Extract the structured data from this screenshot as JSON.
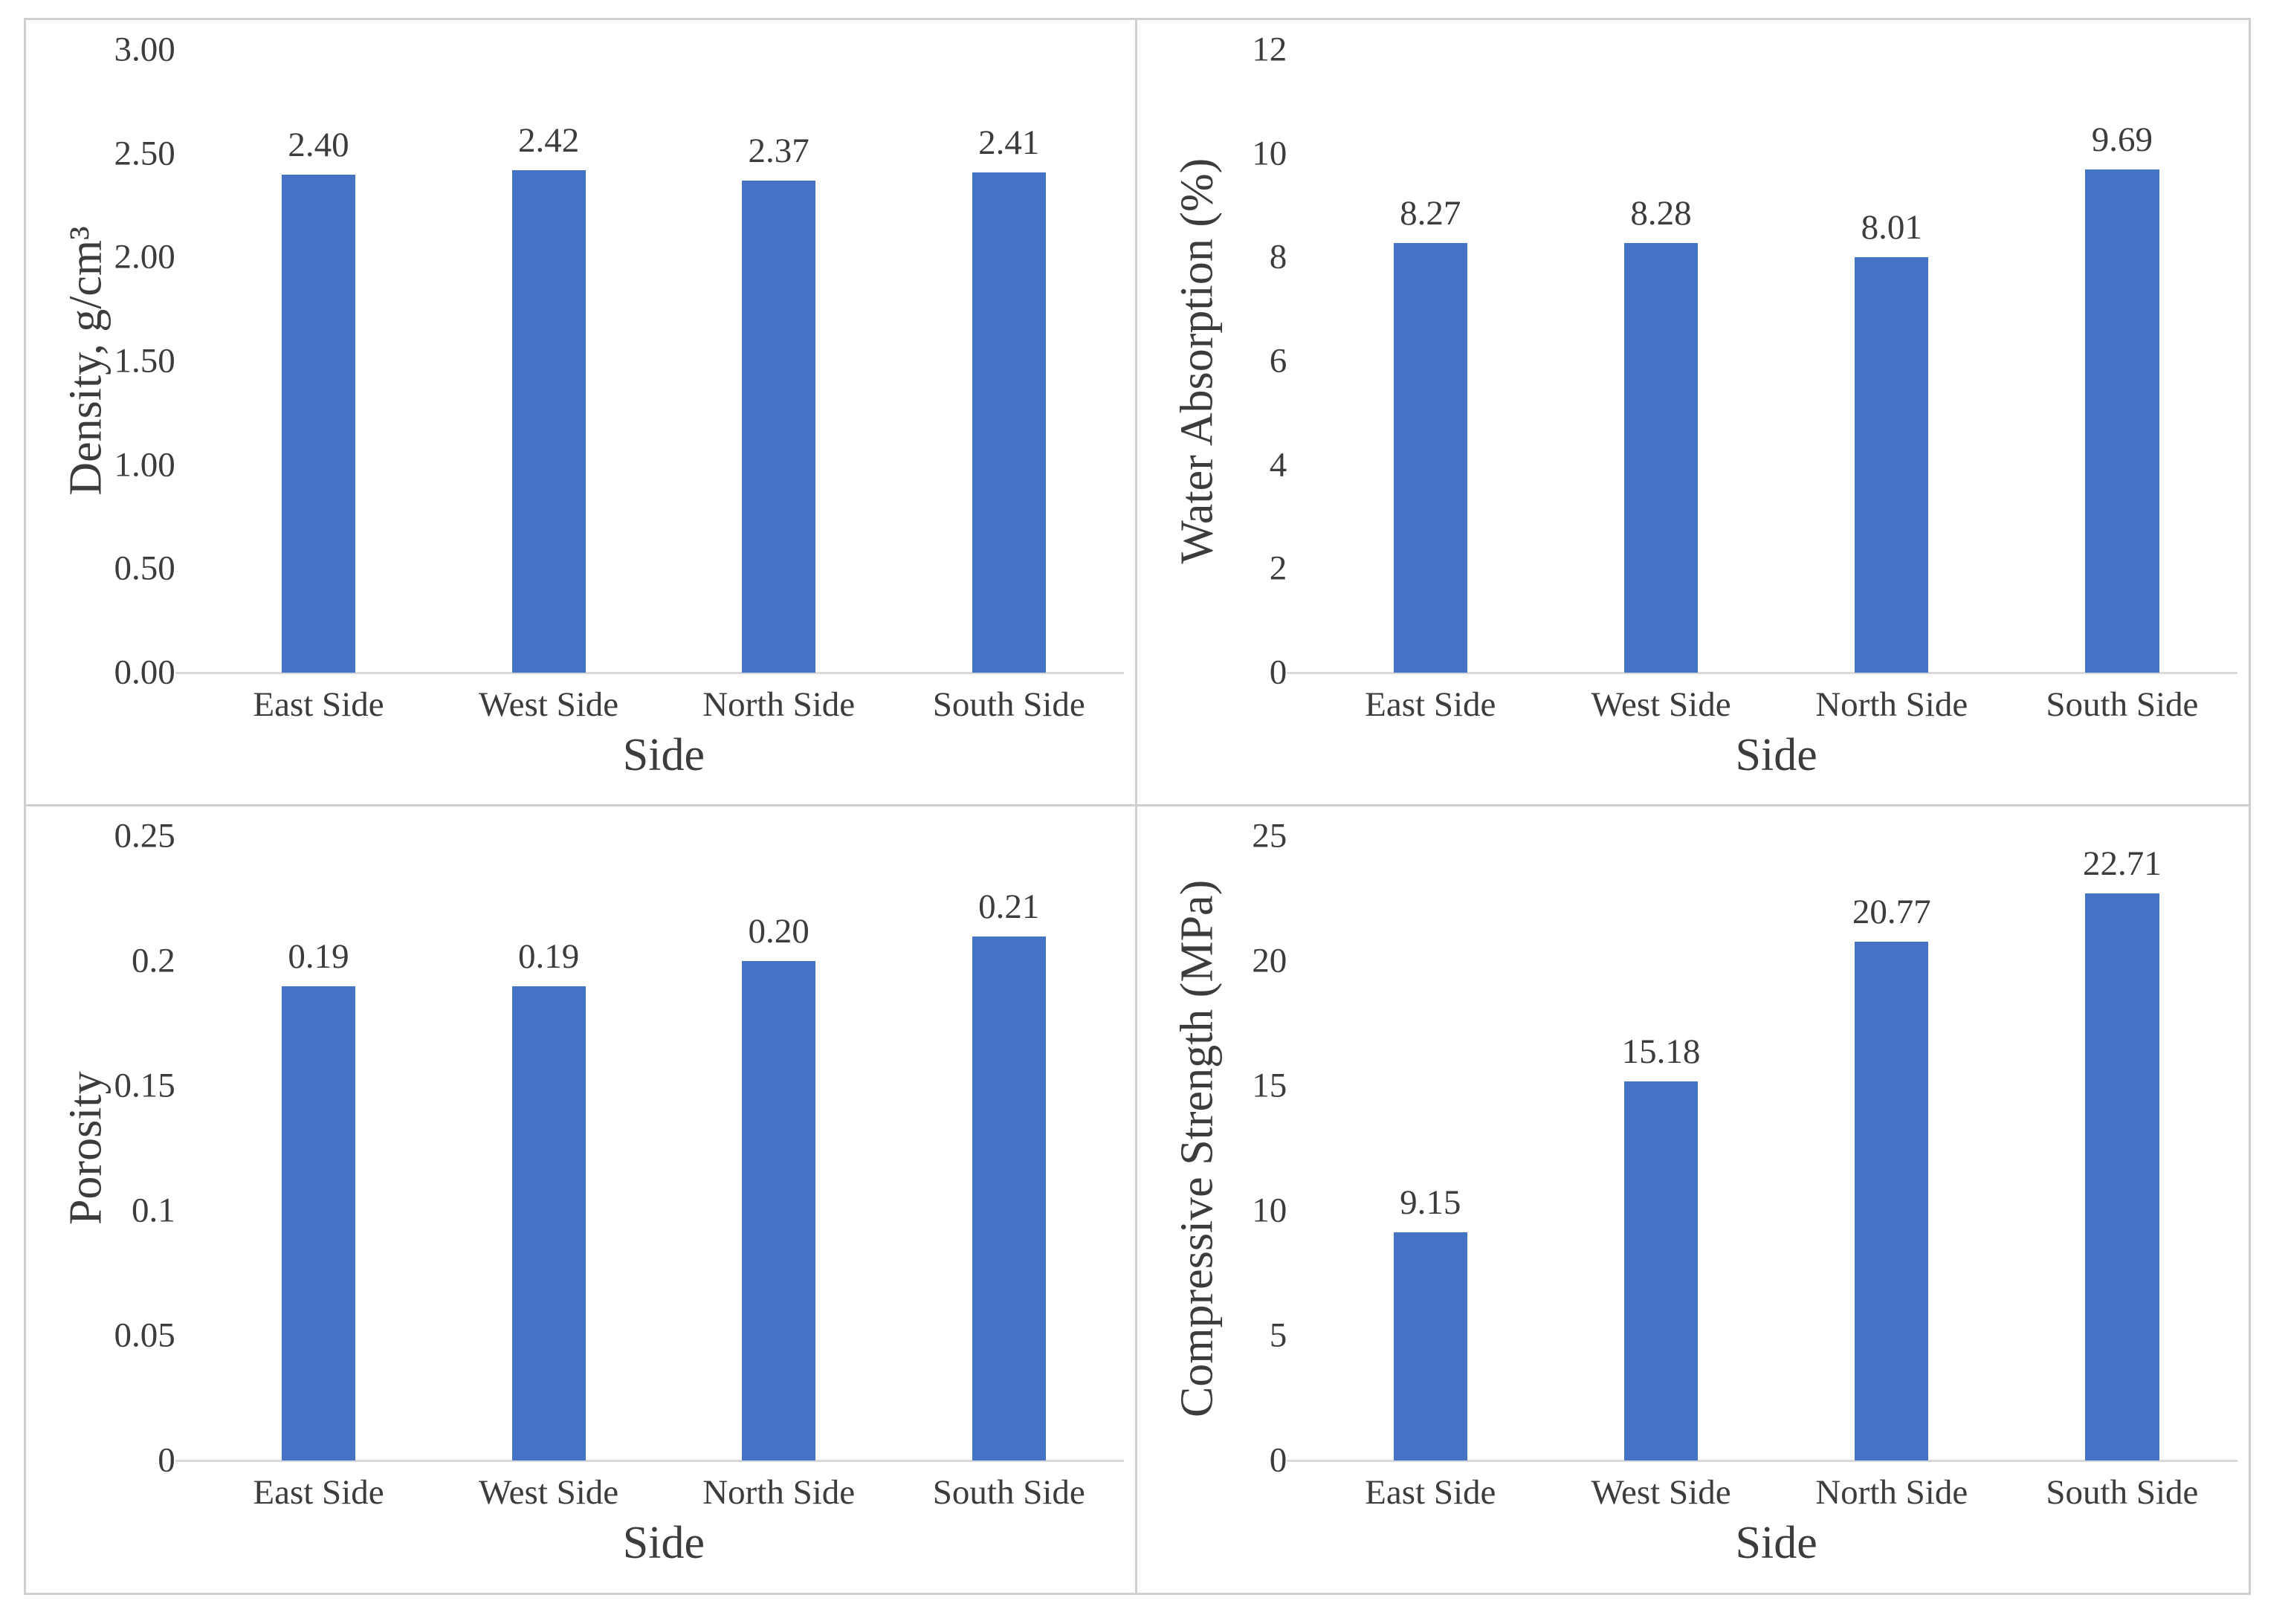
{
  "figure": {
    "background": "#ffffff",
    "frame_color": "#cfcfcf",
    "bar_color": "#4472C4",
    "axis_line_color": "#d9d9d9",
    "text_color": "#3c3c3c"
  },
  "chart_data": [
    {
      "type": "bar",
      "position": "top-left",
      "title": "",
      "ylabel": "Density, g/cm³",
      "xlabel": "Side",
      "categories": [
        "East Side",
        "West Side",
        "North Side",
        "South Side"
      ],
      "values": [
        2.4,
        2.42,
        2.37,
        2.41
      ],
      "value_labels": [
        "2.40",
        "2.42",
        "2.37",
        "2.41"
      ],
      "ylim": [
        0,
        3
      ],
      "ytick_values": [
        0,
        0.5,
        1,
        1.5,
        2,
        2.5,
        3
      ],
      "ytick_labels": [
        "0.00",
        "0.50",
        "1.00",
        "1.50",
        "2.00",
        "2.50",
        "3.00"
      ],
      "grid": false,
      "legend": "none"
    },
    {
      "type": "bar",
      "position": "top-right",
      "title": "",
      "ylabel": "Water Absorption (%)",
      "xlabel": "Side",
      "categories": [
        "East Side",
        "West Side",
        "North Side",
        "South Side"
      ],
      "values": [
        8.27,
        8.28,
        8.01,
        9.69
      ],
      "value_labels": [
        "8.27",
        "8.28",
        "8.01",
        "9.69"
      ],
      "ylim": [
        0,
        12
      ],
      "ytick_values": [
        0,
        2,
        4,
        6,
        8,
        10,
        12
      ],
      "ytick_labels": [
        "0",
        "2",
        "4",
        "6",
        "8",
        "10",
        "12"
      ],
      "grid": false,
      "legend": "none"
    },
    {
      "type": "bar",
      "position": "bottom-left",
      "title": "",
      "ylabel": "Porosity",
      "xlabel": "Side",
      "categories": [
        "East Side",
        "West Side",
        "North Side",
        "South Side"
      ],
      "values": [
        0.19,
        0.19,
        0.2,
        0.21
      ],
      "value_labels": [
        "0.19",
        "0.19",
        "0.20",
        "0.21"
      ],
      "ylim": [
        0,
        0.25
      ],
      "ytick_values": [
        0,
        0.05,
        0.1,
        0.15,
        0.2,
        0.25
      ],
      "ytick_labels": [
        "0",
        "0.05",
        "0.1",
        "0.15",
        "0.2",
        "0.25"
      ],
      "grid": false,
      "legend": "none"
    },
    {
      "type": "bar",
      "position": "bottom-right",
      "title": "",
      "ylabel": "Compressive Strength (MPa)",
      "xlabel": "Side",
      "categories": [
        "East Side",
        "West Side",
        "North Side",
        "South Side"
      ],
      "values": [
        9.15,
        15.18,
        20.77,
        22.71
      ],
      "value_labels": [
        "9.15",
        "15.18",
        "20.77",
        "22.71"
      ],
      "ylim": [
        0,
        25
      ],
      "ytick_values": [
        0,
        5,
        10,
        15,
        20,
        25
      ],
      "ytick_labels": [
        "0",
        "5",
        "10",
        "15",
        "20",
        "25"
      ],
      "grid": false,
      "legend": "none"
    }
  ]
}
